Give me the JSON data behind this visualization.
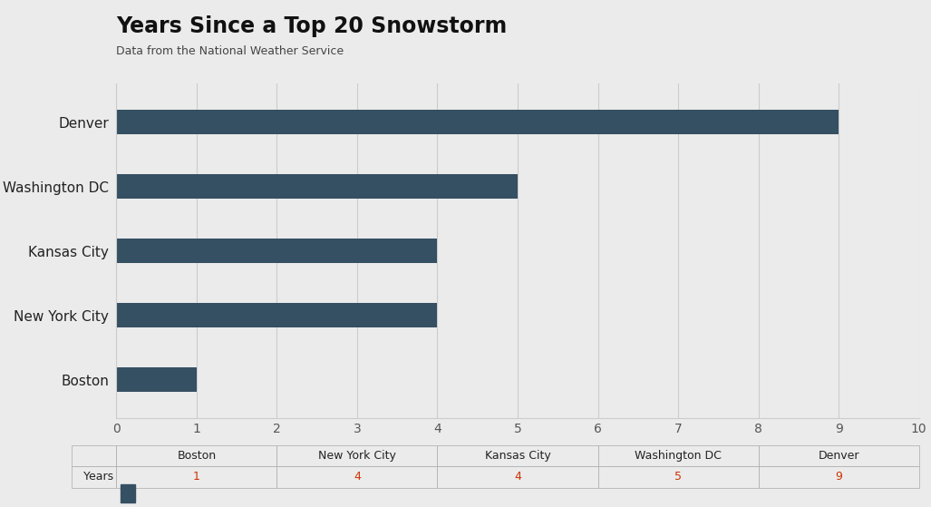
{
  "title": "Years Since a Top 20 Snowstorm",
  "subtitle": "Data from the National Weather Service",
  "categories": [
    "Boston",
    "New York City",
    "Kansas City",
    "Washington DC",
    "Denver"
  ],
  "values": [
    1,
    4,
    4,
    5,
    9
  ],
  "bar_color": "#354f63",
  "background_color": "#ebebeb",
  "xlim": [
    0,
    10
  ],
  "xticks": [
    0,
    1,
    2,
    3,
    4,
    5,
    6,
    7,
    8,
    9,
    10
  ],
  "table_cities": [
    "Boston",
    "New York City",
    "Kansas City",
    "Washington DC",
    "Denver"
  ],
  "table_values": [
    "1",
    "4",
    "4",
    "5",
    "9"
  ],
  "table_row_label": "Years",
  "title_fontsize": 17,
  "subtitle_fontsize": 9,
  "tick_label_fontsize": 10,
  "bar_label_fontsize": 11,
  "bar_height": 0.38
}
